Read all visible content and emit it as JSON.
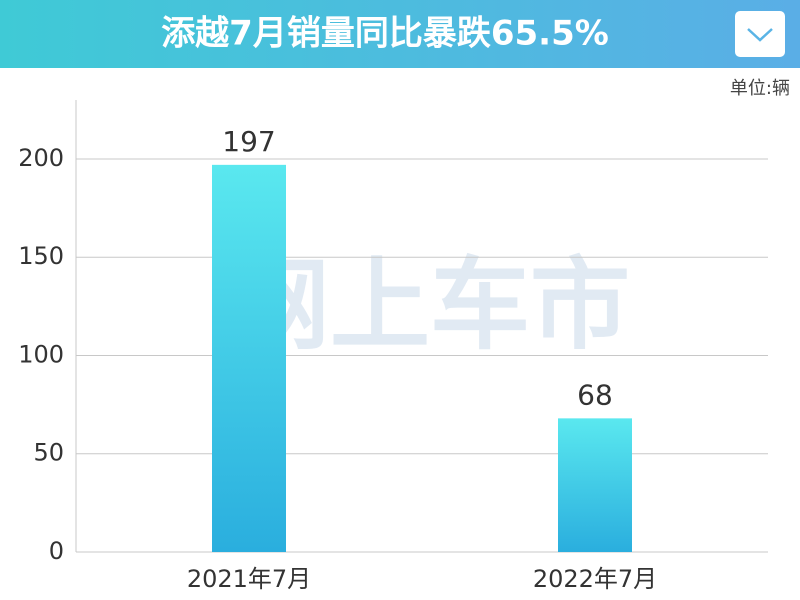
{
  "chart_data": {
    "type": "bar",
    "title": "添越7月销量同比暴跌65.5%",
    "unit": "单位:辆",
    "watermark": "网上车市",
    "categories": [
      "2021年7月",
      "2022年7月"
    ],
    "values": [
      197,
      68
    ],
    "ylim": [
      0,
      230
    ],
    "yticks": [
      0,
      50,
      100,
      150,
      200
    ],
    "grid": true,
    "colors": [
      "#5ae8ef",
      "#2aaede"
    ]
  }
}
